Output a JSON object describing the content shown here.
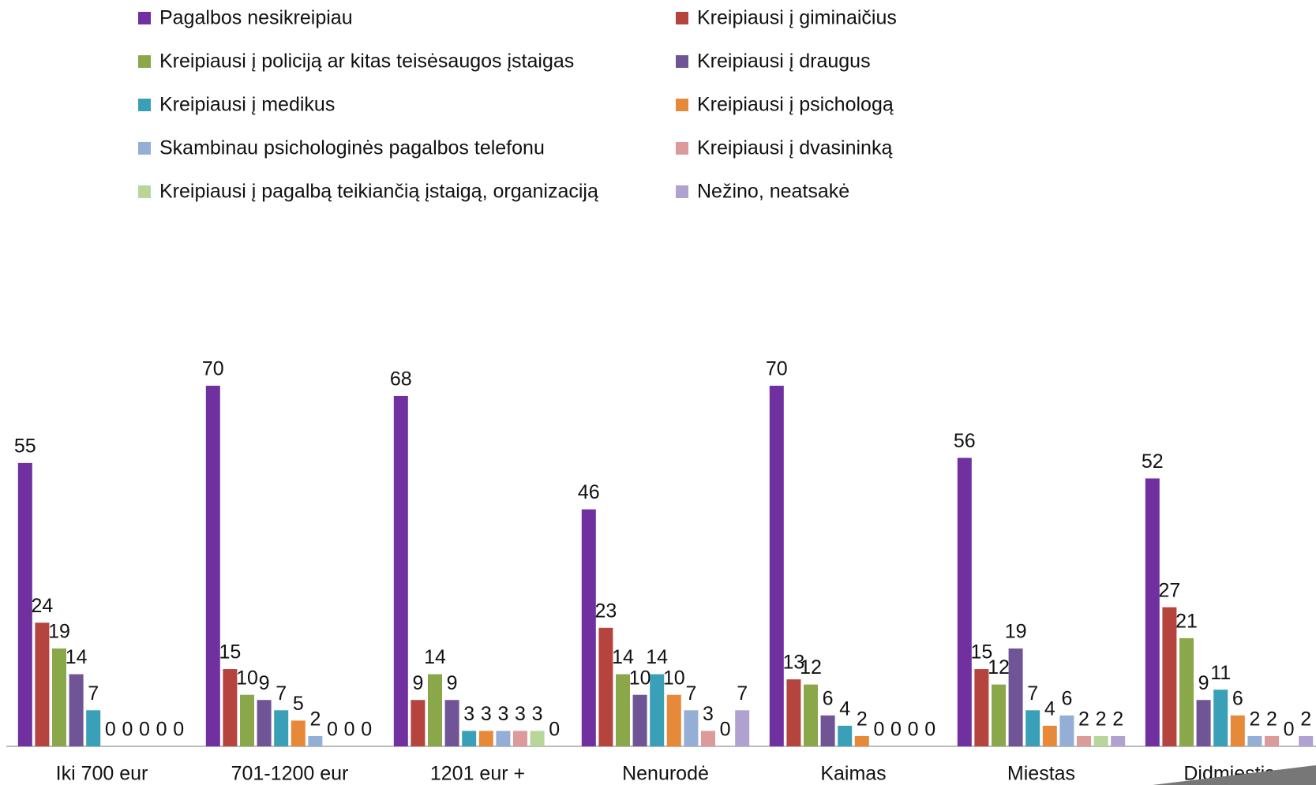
{
  "chart_data": {
    "type": "bar",
    "categories": [
      "Iki 700 eur",
      "701-1200 eur",
      "1201 eur +",
      "Nenurodė",
      "Kaimas",
      "Miestas",
      "Didmiestis"
    ],
    "series": [
      {
        "name": "Pagalbos nesikreipiau",
        "color": "#7030a0",
        "values": [
          55,
          70,
          68,
          46,
          70,
          56,
          52
        ]
      },
      {
        "name": "Kreipiausi į giminaičius",
        "color": "#b5443f",
        "values": [
          24,
          15,
          9,
          23,
          13,
          15,
          27
        ]
      },
      {
        "name": "Kreipiausi į policiją ar kitas teisėsaugos įstaigas",
        "color": "#8aa84a",
        "values": [
          19,
          10,
          14,
          14,
          12,
          12,
          21
        ]
      },
      {
        "name": "Kreipiausi į draugus",
        "color": "#6f5596",
        "values": [
          14,
          9,
          9,
          10,
          6,
          19,
          9
        ]
      },
      {
        "name": "Kreipiausi į medikus",
        "color": "#3aa0b8",
        "values": [
          7,
          7,
          3,
          14,
          4,
          7,
          11
        ]
      },
      {
        "name": "Kreipiausi į psichologą",
        "color": "#e68a3a",
        "values": [
          0,
          5,
          3,
          10,
          2,
          4,
          6
        ]
      },
      {
        "name": "Skambinau psichologinės pagalbos telefonu",
        "color": "#94aed6",
        "values": [
          0,
          2,
          3,
          7,
          0,
          6,
          2
        ]
      },
      {
        "name": "Kreipiausi į dvasininką",
        "color": "#dc9a9a",
        "values": [
          0,
          0,
          3,
          3,
          0,
          2,
          2
        ]
      },
      {
        "name": "Kreipiausi į pagalbą teikiančią įstaigą, organizaciją",
        "color": "#b9d69a",
        "values": [
          0,
          0,
          3,
          0,
          0,
          2,
          0
        ]
      },
      {
        "name": "Nežino, neatsakė",
        "color": "#b0a2ce",
        "values": [
          0,
          0,
          0,
          7,
          0,
          2,
          2
        ]
      }
    ]
  }
}
